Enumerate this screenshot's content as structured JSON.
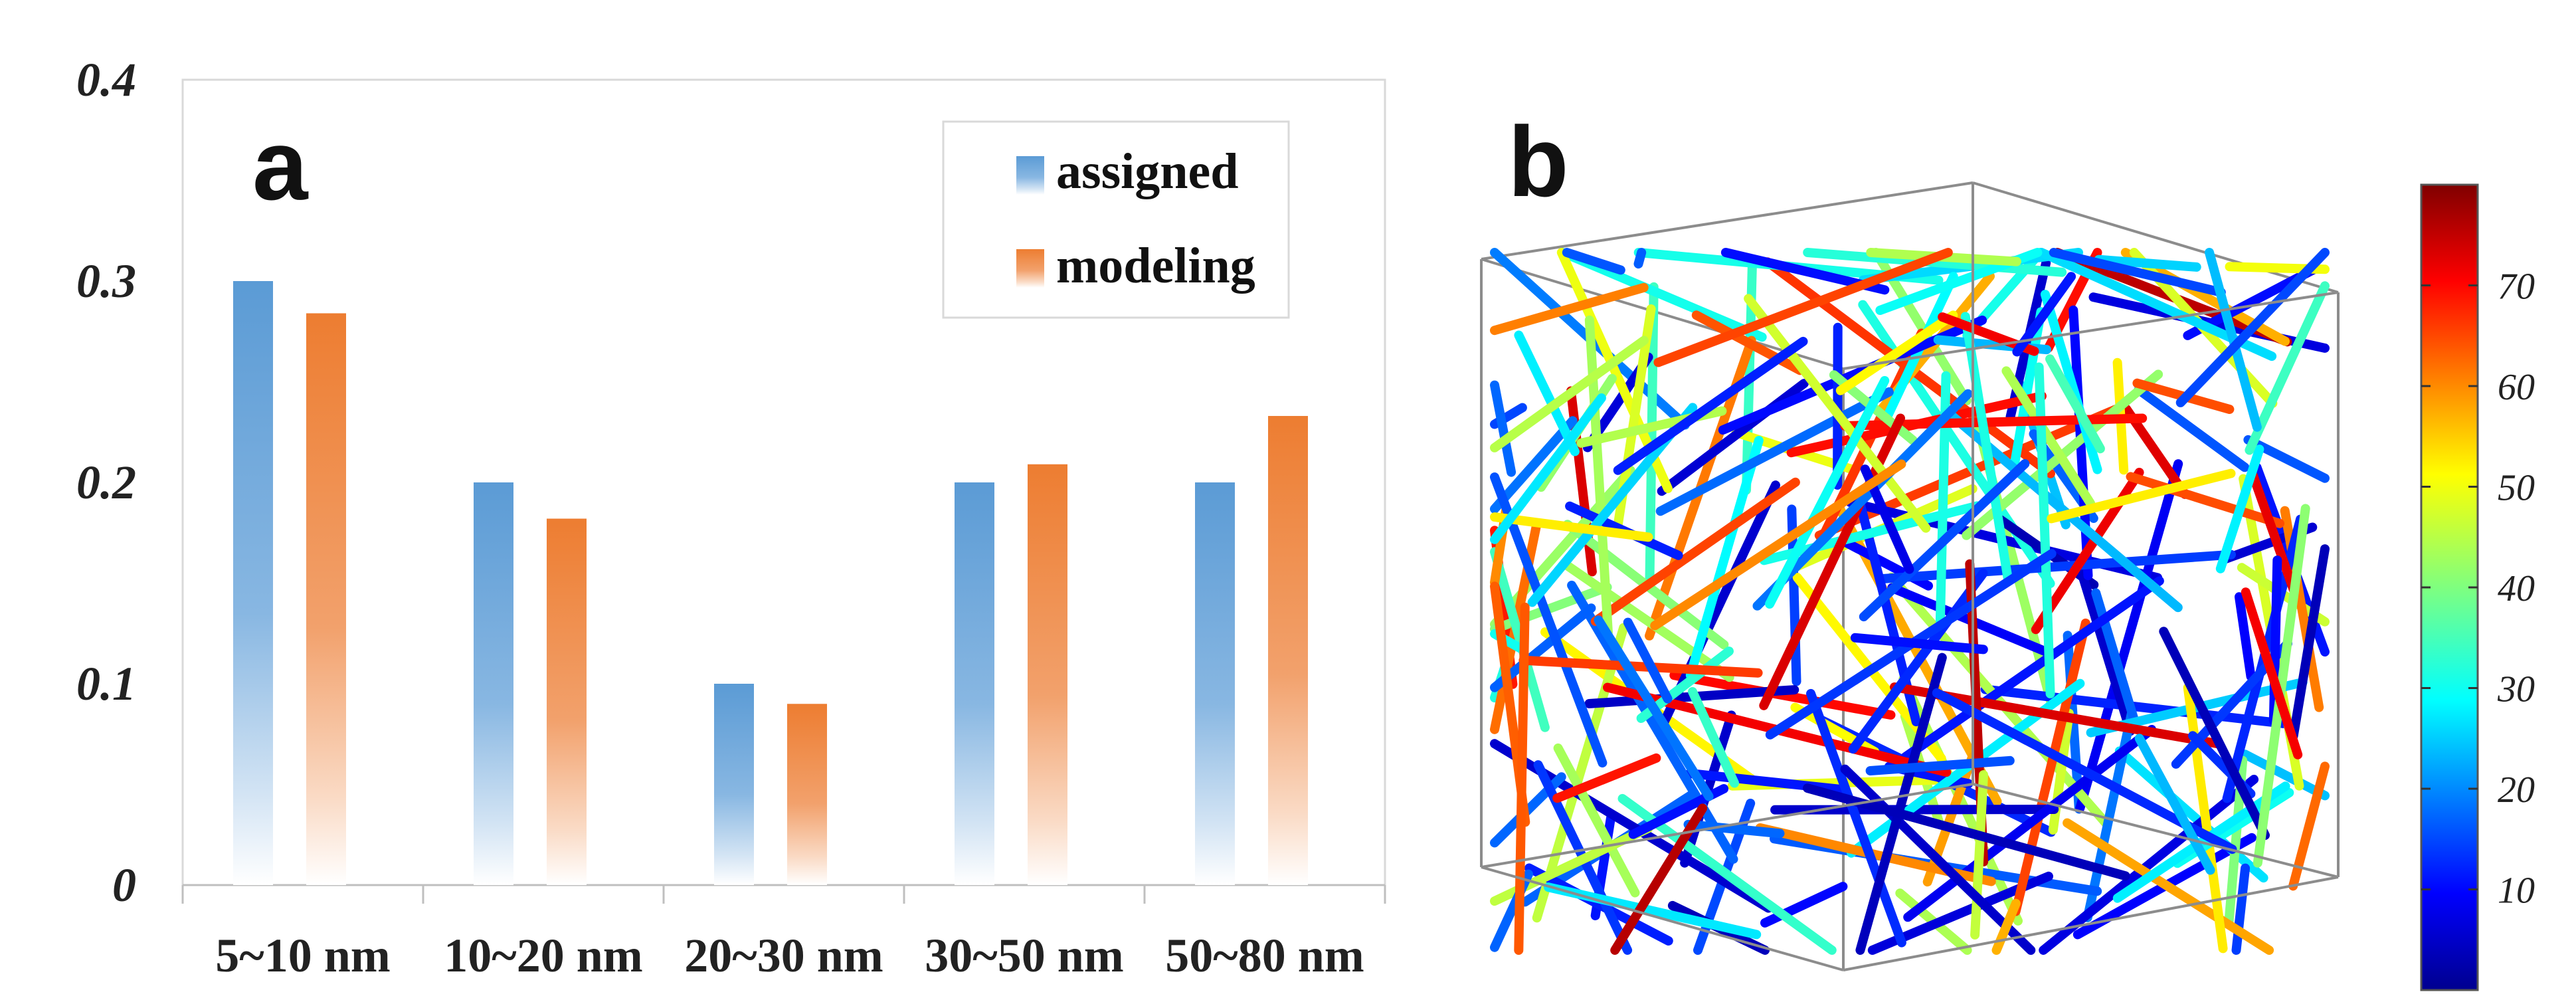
{
  "panels": {
    "a": "a",
    "b": "b"
  },
  "chart_data": [
    {
      "type": "bar",
      "title": "",
      "xlabel": "",
      "ylabel": "",
      "categories": [
        "5~10 nm",
        "10~20 nm",
        "20~30 nm",
        "30~50 nm",
        "50~80 nm"
      ],
      "series": [
        {
          "name": "assigned",
          "values": [
            0.3,
            0.2,
            0.1,
            0.2,
            0.2
          ],
          "color": "#5b9bd5"
        },
        {
          "name": "modeling",
          "values": [
            0.284,
            0.182,
            0.09,
            0.209,
            0.233
          ],
          "color": "#ed7d31"
        }
      ],
      "ylim": [
        0,
        0.4
      ],
      "yticks": [
        0,
        0.1,
        0.2,
        0.3,
        0.4
      ],
      "ytick_labels": [
        "0",
        "0.1",
        "0.2",
        "0.3",
        "0.4"
      ],
      "legend": "top-right",
      "grid": false
    },
    {
      "type": "3d-fiber-network",
      "title": "",
      "colorbar": {
        "range": [
          0,
          80
        ],
        "ticks": [
          10,
          20,
          30,
          40,
          50,
          60,
          70
        ],
        "tick_labels": [
          "10",
          "20",
          "30",
          "40",
          "50",
          "60",
          "70"
        ],
        "colormap": "jet"
      },
      "fiber_count": 220
    }
  ]
}
